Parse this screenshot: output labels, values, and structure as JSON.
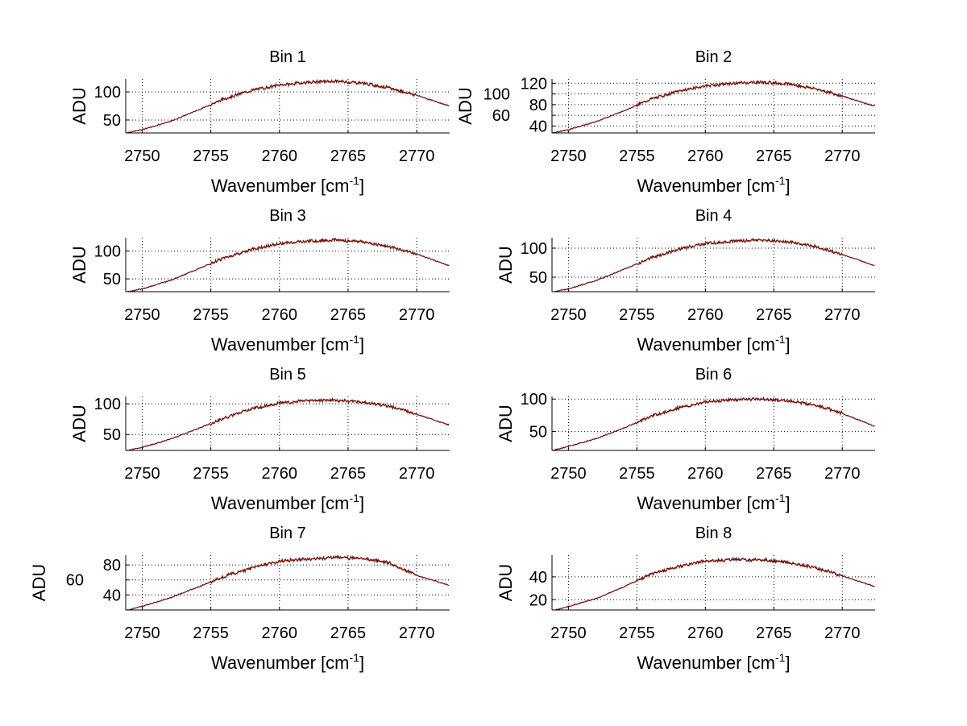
{
  "chart_data": [
    {
      "type": "line",
      "title": "Bin 1",
      "xlabel": "Wavenumber [cm",
      "xlabel_sup": "-1",
      "xlabel_end": "]",
      "ylabel": "ADU",
      "xlim": [
        2748.8,
        2772.4
      ],
      "ylim": [
        27,
        123
      ],
      "xticks": [
        2750,
        2755,
        2760,
        2765,
        2770
      ],
      "yticks": [
        50,
        100
      ],
      "grid": true,
      "x": [
        2749,
        2750,
        2752,
        2754,
        2756,
        2758,
        2760,
        2762,
        2764,
        2766,
        2768,
        2770,
        2772
      ],
      "y": [
        28,
        33,
        47,
        67,
        88,
        103,
        112,
        117,
        119,
        116,
        107,
        94,
        78
      ]
    },
    {
      "type": "line",
      "title": "Bin 2",
      "xlabel": "Wavenumber [cm",
      "xlabel_sup": "-1",
      "xlabel_end": "]",
      "ylabel": "ADU",
      "xlim": [
        2748.8,
        2772.4
      ],
      "ylim": [
        27,
        128
      ],
      "xticks": [
        2750,
        2755,
        2760,
        2765,
        2770
      ],
      "yticks": [
        40,
        60,
        80,
        100,
        120
      ],
      "grid": true,
      "x": [
        2749,
        2750,
        2752,
        2754,
        2756,
        2758,
        2760,
        2762,
        2764,
        2766,
        2768,
        2770,
        2772
      ],
      "y": [
        28,
        33,
        48,
        68,
        90,
        105,
        115,
        120,
        122,
        119,
        110,
        96,
        80
      ]
    },
    {
      "type": "line",
      "title": "Bin 3",
      "xlabel": "Wavenumber [cm",
      "xlabel_sup": "-1",
      "xlabel_end": "]",
      "ylabel": "ADU",
      "xlim": [
        2748.8,
        2772.4
      ],
      "ylim": [
        27,
        124
      ],
      "xticks": [
        2750,
        2755,
        2760,
        2765,
        2770
      ],
      "yticks": [
        50,
        100
      ],
      "grid": true,
      "x": [
        2749,
        2750,
        2752,
        2754,
        2756,
        2758,
        2760,
        2762,
        2764,
        2766,
        2768,
        2770,
        2772
      ],
      "y": [
        27,
        32,
        47,
        67,
        88,
        103,
        113,
        118,
        120,
        117,
        108,
        95,
        77
      ]
    },
    {
      "type": "line",
      "title": "Bin 4",
      "xlabel": "Wavenumber [cm",
      "xlabel_sup": "-1",
      "xlabel_end": "]",
      "ylabel": "ADU",
      "xlim": [
        2748.8,
        2772.4
      ],
      "ylim": [
        25,
        118
      ],
      "xticks": [
        2750,
        2755,
        2760,
        2765,
        2770
      ],
      "yticks": [
        50,
        100
      ],
      "grid": true,
      "x": [
        2749,
        2750,
        2752,
        2754,
        2756,
        2758,
        2760,
        2762,
        2764,
        2766,
        2768,
        2770,
        2772
      ],
      "y": [
        25,
        30,
        44,
        63,
        83,
        98,
        108,
        112,
        114,
        111,
        103,
        89,
        73
      ]
    },
    {
      "type": "line",
      "title": "Bin 5",
      "xlabel": "Wavenumber [cm",
      "xlabel_sup": "-1",
      "xlabel_end": "]",
      "ylabel": "ADU",
      "xlim": [
        2748.8,
        2772.4
      ],
      "ylim": [
        24,
        112
      ],
      "xticks": [
        2750,
        2755,
        2760,
        2765,
        2770
      ],
      "yticks": [
        50,
        100
      ],
      "grid": true,
      "x": [
        2749,
        2750,
        2752,
        2754,
        2756,
        2758,
        2760,
        2762,
        2764,
        2766,
        2768,
        2770,
        2772
      ],
      "y": [
        24,
        29,
        42,
        59,
        77,
        92,
        101,
        105,
        106,
        103,
        96,
        83,
        68
      ]
    },
    {
      "type": "line",
      "title": "Bin 6",
      "xlabel": "Wavenumber [cm",
      "xlabel_sup": "-1",
      "xlabel_end": "]",
      "ylabel": "ADU",
      "xlim": [
        2748.8,
        2772.4
      ],
      "ylim": [
        21,
        104
      ],
      "xticks": [
        2750,
        2755,
        2760,
        2765,
        2770
      ],
      "yticks": [
        50,
        100
      ],
      "grid": true,
      "x": [
        2749,
        2750,
        2752,
        2754,
        2756,
        2758,
        2760,
        2762,
        2764,
        2766,
        2768,
        2770,
        2772
      ],
      "y": [
        22,
        27,
        39,
        55,
        73,
        86,
        95,
        99,
        100,
        97,
        91,
        78,
        61
      ]
    },
    {
      "type": "line",
      "title": "Bin 7",
      "xlabel": "Wavenumber [cm",
      "xlabel_sup": "-1",
      "xlabel_end": "]",
      "ylabel": "ADU",
      "xlim": [
        2748.8,
        2772.4
      ],
      "ylim": [
        20,
        93
      ],
      "xticks": [
        2750,
        2755,
        2760,
        2765,
        2770
      ],
      "yticks": [
        40,
        60,
        80
      ],
      "grid": true,
      "x": [
        2749,
        2750,
        2752,
        2754,
        2756,
        2758,
        2760,
        2762,
        2764,
        2766,
        2768,
        2770,
        2772
      ],
      "y": [
        20,
        25,
        36,
        50,
        65,
        76,
        85,
        88,
        90,
        89,
        83,
        66,
        55
      ]
    },
    {
      "type": "line",
      "title": "Bin 8",
      "xlabel": "Wavenumber [cm",
      "xlabel_sup": "-1",
      "xlabel_end": "]",
      "ylabel": "ADU",
      "xlim": [
        2748.8,
        2772.4
      ],
      "ylim": [
        11,
        59
      ],
      "xticks": [
        2750,
        2755,
        2760,
        2765,
        2770
      ],
      "yticks": [
        20,
        40
      ],
      "grid": true,
      "x": [
        2749,
        2750,
        2752,
        2754,
        2756,
        2758,
        2760,
        2762,
        2764,
        2766,
        2768,
        2770,
        2772
      ],
      "y": [
        11,
        14,
        21,
        31,
        42,
        49,
        54,
        55,
        55,
        53,
        48,
        41,
        33
      ]
    }
  ],
  "colors": {
    "line": "#7a0a14",
    "overlay1": "#ff9900",
    "overlay2": "#2a2a2a",
    "grid": "#000000"
  }
}
